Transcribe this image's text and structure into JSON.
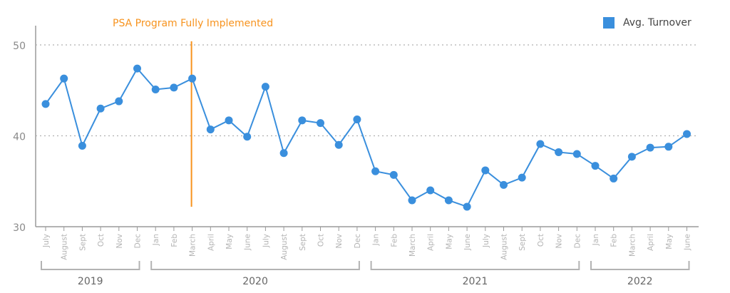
{
  "chart_data": {
    "type": "line",
    "title": "",
    "xlabel": "",
    "ylabel": "",
    "ylim": [
      30,
      50
    ],
    "yticks": [
      "30",
      "40",
      "50"
    ],
    "grid": true,
    "legend_position": "top-right",
    "colors": {
      "series": "#3a8fdd",
      "annotation": "#f7931e",
      "axis": "#9a9a9a",
      "label": "#b4b4b4"
    },
    "categories": [
      "July",
      "August",
      "Sept",
      "Oct",
      "Nov",
      "Dec",
      "Jan",
      "Feb",
      "March",
      "April",
      "May",
      "June",
      "July",
      "August",
      "Sept",
      "Oct",
      "Nov",
      "Dec",
      "Jan",
      "Feb",
      "March",
      "April",
      "May",
      "June",
      "July",
      "August",
      "Sept",
      "Oct",
      "Nov",
      "Dec",
      "Jan",
      "Feb",
      "March",
      "April",
      "May",
      "June"
    ],
    "series": [
      {
        "name": "Avg. Turnover",
        "values": [
          43.5,
          46.3,
          38.9,
          43.0,
          43.8,
          47.4,
          45.1,
          45.3,
          46.3,
          40.7,
          41.7,
          39.9,
          45.4,
          38.1,
          41.7,
          41.4,
          39.0,
          41.8,
          36.1,
          35.7,
          32.9,
          34.0,
          32.9,
          32.2,
          36.2,
          34.6,
          35.4,
          39.1,
          38.2,
          38.0,
          36.7,
          35.3,
          37.7,
          38.7,
          38.8,
          40.2
        ]
      }
    ],
    "year_groups": [
      {
        "label": "2019",
        "start": 0,
        "end": 5
      },
      {
        "label": "2020",
        "start": 6,
        "end": 17
      },
      {
        "label": "2021",
        "start": 18,
        "end": 29
      },
      {
        "label": "2022",
        "start": 30,
        "end": 35
      }
    ],
    "annotation": {
      "text": "PSA Program Fully Implemented",
      "index": 8,
      "ymin": 32.2,
      "ymax": 50.4
    }
  }
}
